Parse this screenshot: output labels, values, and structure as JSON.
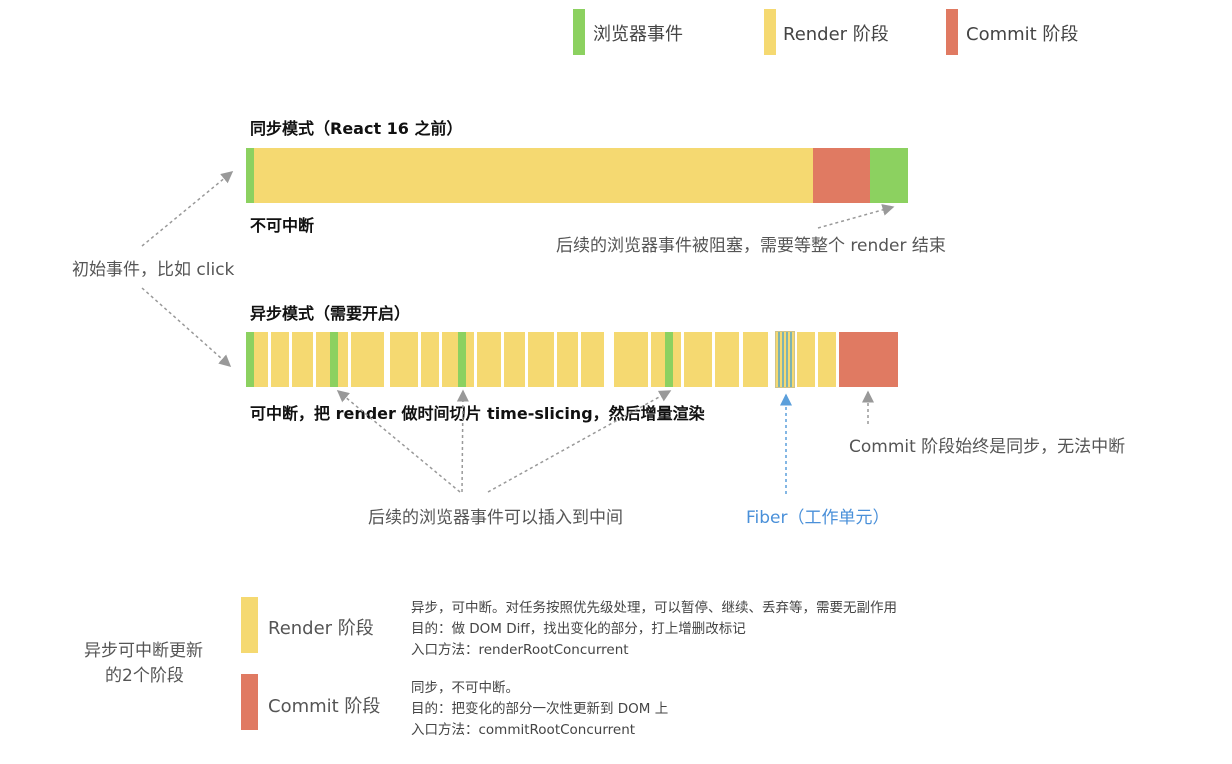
{
  "colors": {
    "browser_event": "#8cd160",
    "render": "#f5d971",
    "commit": "#e07a62",
    "fiber_stripe": "#7fb3b0",
    "arrow": "#999999",
    "fiber_arrow": "#5b9fdb",
    "fiber_label": "#4a90d9"
  },
  "legend": {
    "browser_event": "浏览器事件",
    "render": "Render 阶段",
    "commit": "Commit 阶段"
  },
  "sync": {
    "title": "同步模式（React 16 之前）",
    "caption": "不可中断",
    "blocked_note": "后续的浏览器事件被阻塞，需要等整个 render 结束"
  },
  "initial_event": "初始事件，比如 click",
  "async": {
    "title": "异步模式（需要开启）",
    "caption": "可中断，把 render 做时间切片 time-slicing，然后增量渲染",
    "insert_note": "后续的浏览器事件可以插入到中间",
    "fiber_note": "Fiber（工作单元）",
    "commit_note": "Commit 阶段始终是同步，无法中断"
  },
  "summary": {
    "heading_line1": "异步可中断更新",
    "heading_line2": "的2个阶段",
    "render": {
      "name": "Render 阶段",
      "lines": [
        "异步，可中断。对任务按照优先级处理，可以暂停、继续、丢弃等，需要无副作用",
        "目的：做 DOM Diff，找出变化的部分，打上增删改标记",
        "入口方法：renderRootConcurrent"
      ]
    },
    "commit": {
      "name": "Commit 阶段",
      "lines": [
        "同步，不可中断。",
        "目的：把变化的部分一次性更新到 DOM 上",
        "入口方法：commitRootConcurrent"
      ]
    }
  }
}
